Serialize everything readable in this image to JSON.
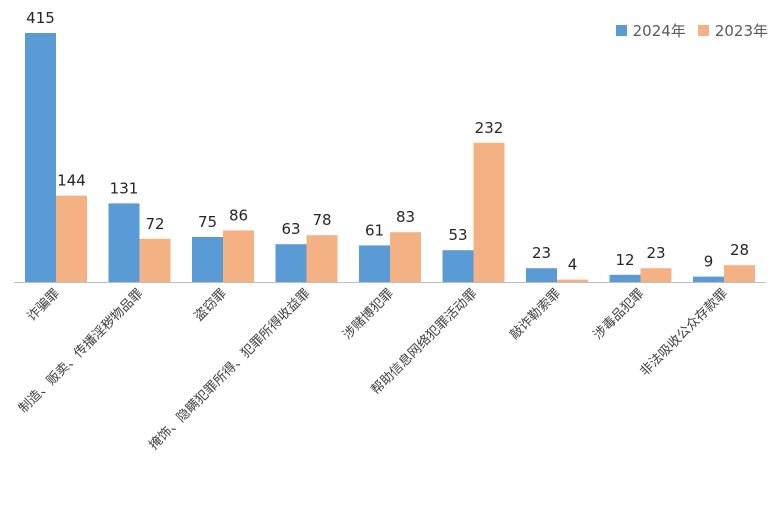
{
  "chart_data": {
    "type": "bar",
    "title": "",
    "xlabel": "",
    "ylabel": "",
    "categories": [
      "诈骗罪",
      "制造、贩卖、传播淫秽物品罪",
      "盗窃罪",
      "掩饰、隐瞒犯罪所得、犯罪所得收益罪",
      "涉赌博犯罪",
      "帮助信息网络犯罪活动罪",
      "敲诈勒索罪",
      "涉毒品犯罪",
      "非法吸收公众存款罪"
    ],
    "series": [
      {
        "name": "2024年",
        "color": "#5b9bd5",
        "values": [
          415,
          131,
          75,
          63,
          61,
          53,
          23,
          12,
          9
        ]
      },
      {
        "name": "2023年",
        "color": "#f4b183",
        "values": [
          144,
          72,
          86,
          78,
          83,
          232,
          4,
          23,
          28
        ]
      }
    ],
    "ylim": [
      0,
      415
    ],
    "grid": false,
    "legend_position": "top-right",
    "data_labels": true
  }
}
